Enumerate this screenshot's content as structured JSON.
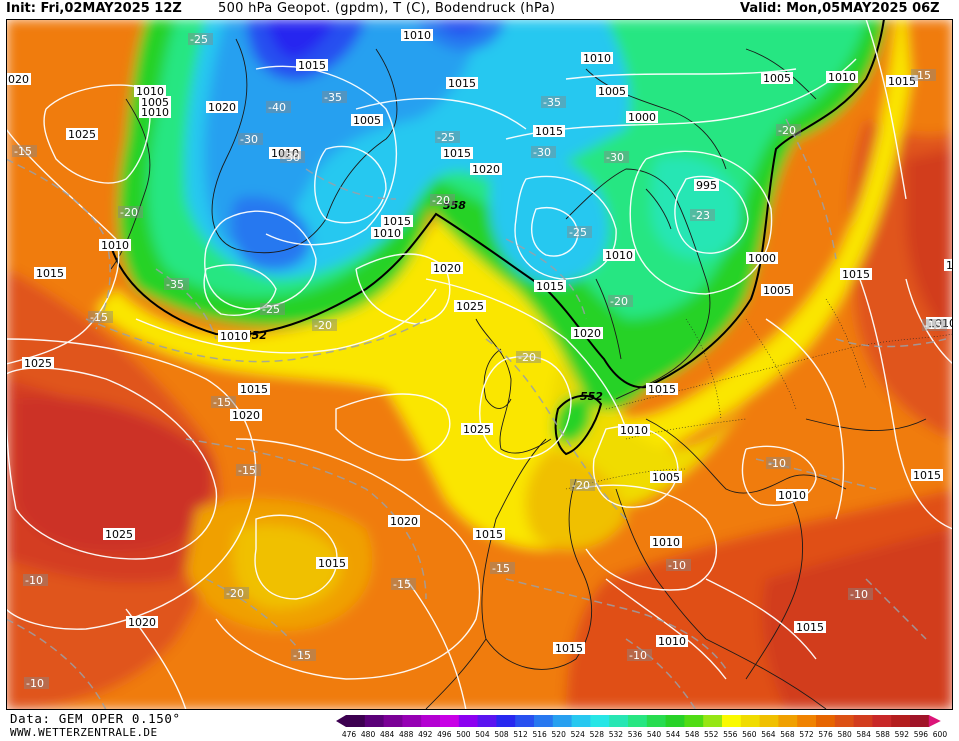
{
  "header": {
    "init": "Init: Fri,02MAY2025 12Z",
    "title": "500 hPa Geopot. (gpdm), T (C), Bodendruck (hPa)",
    "valid": "Valid: Mon,05MAY2025 06Z"
  },
  "footer": {
    "data_source": "Data: GEM OPER 0.150°",
    "website": "WWW.WETTERZENTRALE.DE"
  },
  "legend": {
    "values": [
      "476",
      "480",
      "484",
      "488",
      "492",
      "496",
      "500",
      "504",
      "508",
      "512",
      "516",
      "520",
      "524",
      "528",
      "532",
      "536",
      "540",
      "544",
      "548",
      "552",
      "556",
      "560",
      "564",
      "568",
      "572",
      "576",
      "580",
      "584",
      "588",
      "592",
      "596",
      "600"
    ],
    "colors": [
      "#3c0050",
      "#5a0078",
      "#7a0096",
      "#9600b4",
      "#b400d2",
      "#c800e6",
      "#8c00f0",
      "#5a14f0",
      "#2828f0",
      "#2850f0",
      "#2878f0",
      "#28a0f0",
      "#28c8f0",
      "#28e6e6",
      "#28e6b4",
      "#28e682",
      "#28dc50",
      "#28d228",
      "#50dc14",
      "#96e614",
      "#fafa00",
      "#f0dc00",
      "#f0c000",
      "#f0a000",
      "#f08200",
      "#e66400",
      "#dc5014",
      "#d23c1e",
      "#c82828",
      "#b41e1e",
      "#a01428",
      "#dc1478"
    ]
  },
  "map": {
    "contour_558_label": "558",
    "contour_552_label": "552",
    "pressure_labels": [
      {
        "text": "1010"
      },
      {
        "text": "1015"
      },
      {
        "text": "1010"
      },
      {
        "text": "1005"
      },
      {
        "text": "1010"
      },
      {
        "text": "1015"
      },
      {
        "text": "020"
      },
      {
        "text": "1005"
      },
      {
        "text": "1010"
      },
      {
        "text": "1015"
      },
      {
        "text": "1020"
      },
      {
        "text": "1025"
      },
      {
        "text": "1005"
      },
      {
        "text": "1010"
      },
      {
        "text": "1015"
      },
      {
        "text": "1020"
      },
      {
        "text": "1000"
      },
      {
        "text": "1005"
      },
      {
        "text": "1010"
      },
      {
        "text": "1015"
      },
      {
        "text": "1010"
      },
      {
        "text": "1015"
      },
      {
        "text": "1020"
      },
      {
        "text": "1025"
      },
      {
        "text": "1020"
      },
      {
        "text": "1015"
      },
      {
        "text": "995"
      },
      {
        "text": "1000"
      },
      {
        "text": "1005"
      },
      {
        "text": "1010"
      },
      {
        "text": "1015"
      },
      {
        "text": "1020"
      },
      {
        "text": "1015"
      },
      {
        "text": "1015"
      },
      {
        "text": "1010"
      },
      {
        "text": "1025"
      },
      {
        "text": "1015"
      },
      {
        "text": "1020"
      },
      {
        "text": "1025"
      },
      {
        "text": "1010"
      },
      {
        "text": "1005"
      },
      {
        "text": "1010"
      },
      {
        "text": "1020"
      },
      {
        "text": "1025"
      },
      {
        "text": "1015"
      },
      {
        "text": "1010"
      },
      {
        "text": "1015"
      },
      {
        "text": "1020"
      },
      {
        "text": "1015"
      },
      {
        "text": "1010"
      },
      {
        "text": "1015"
      },
      {
        "text": "1015"
      },
      {
        "text": "1010"
      },
      {
        "text": "1015"
      },
      {
        "text": "1010"
      }
    ],
    "temperature_labels": [
      {
        "text": "-25"
      },
      {
        "text": "-35"
      },
      {
        "text": "-40"
      },
      {
        "text": "-30"
      },
      {
        "text": "-30"
      },
      {
        "text": "-25"
      },
      {
        "text": "-35"
      },
      {
        "text": "-30"
      },
      {
        "text": "-30"
      },
      {
        "text": "-20"
      },
      {
        "text": "-15"
      },
      {
        "text": "-20"
      },
      {
        "text": "-35"
      },
      {
        "text": "-25"
      },
      {
        "text": "-20"
      },
      {
        "text": "-15"
      },
      {
        "text": "-15"
      },
      {
        "text": "-20"
      },
      {
        "text": "-25"
      },
      {
        "text": "-20"
      },
      {
        "text": "-23"
      },
      {
        "text": "-15"
      },
      {
        "text": "-20"
      },
      {
        "text": "-15"
      },
      {
        "text": "-20"
      },
      {
        "text": "-15"
      },
      {
        "text": "-10"
      },
      {
        "text": "-20"
      },
      {
        "text": "-15"
      },
      {
        "text": "-15"
      },
      {
        "text": "-10"
      },
      {
        "text": "-10"
      },
      {
        "text": "-10"
      },
      {
        "text": "-10"
      },
      {
        "text": "-10"
      },
      {
        "text": "-15"
      }
    ]
  }
}
